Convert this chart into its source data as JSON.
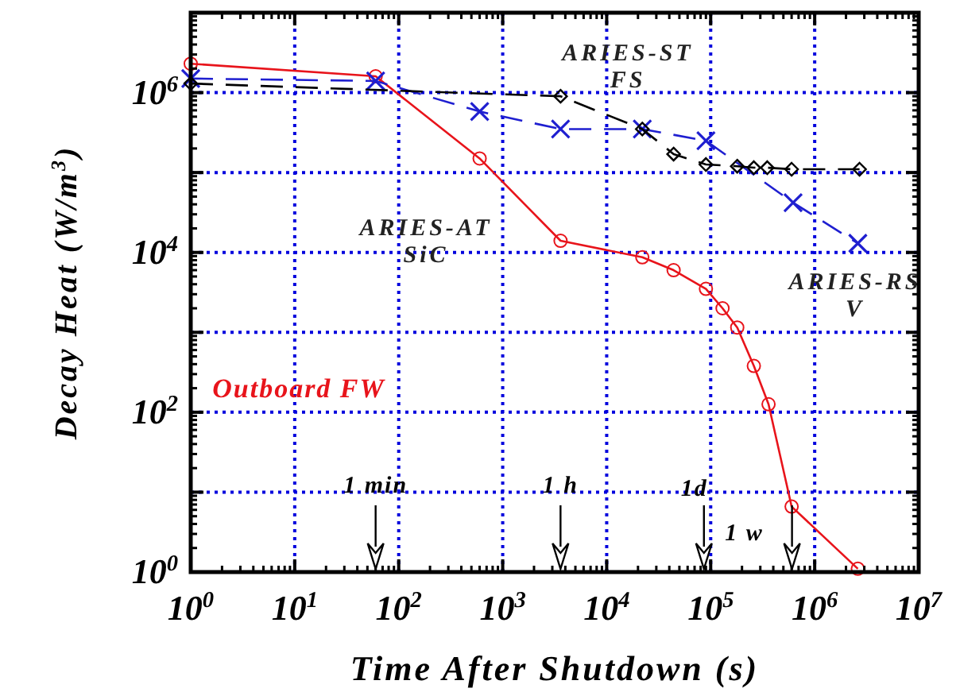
{
  "chart_data": {
    "type": "line",
    "xlabel": "Time After Shutdown (s)",
    "ylabel": "Decay Heat (W/m$^{3}$)",
    "log": "xy",
    "grid": true,
    "xlim": [
      1,
      10000000
    ],
    "ylim": [
      1,
      10000000
    ],
    "xticks": [
      {
        "value": 1,
        "label": "10$^{0}$"
      },
      {
        "value": 10,
        "label": "10$^{1}$"
      },
      {
        "value": 100,
        "label": "10$^{2}$"
      },
      {
        "value": 1000,
        "label": "10$^{3}$"
      },
      {
        "value": 10000,
        "label": "10$^{4}$"
      },
      {
        "value": 100000,
        "label": "10$^{5}$"
      },
      {
        "value": 1000000,
        "label": "10$^{6}$"
      },
      {
        "value": 10000000,
        "label": "10$^{7}$"
      }
    ],
    "yticks": [
      {
        "value": 1,
        "label": "10$^{0}$"
      },
      {
        "value": 10,
        "label": null
      },
      {
        "value": 100,
        "label": "10$^{2}$"
      },
      {
        "value": 1000,
        "label": null
      },
      {
        "value": 10000,
        "label": "10$^{4}$"
      },
      {
        "value": 100000,
        "label": null
      },
      {
        "value": 1000000,
        "label": "10$^{6}$"
      },
      {
        "value": 10000000,
        "label": null
      }
    ],
    "series": [
      {
        "name": "Outboard FW",
        "color": "#e8141b",
        "marker": "circle",
        "line_style": "solid",
        "x": [
          1,
          60,
          600,
          3600,
          22000,
          44000,
          90000,
          130000,
          180000,
          260000,
          360000,
          600000,
          2600000
        ],
        "values": [
          2300000,
          1600000,
          150000,
          14000,
          8700,
          6000,
          3500,
          2000,
          1150,
          380,
          126,
          6.6,
          1.1
        ]
      },
      {
        "color": "#1f1fd0",
        "marker": "cross",
        "line_style": "dashed",
        "x": [
          1,
          60,
          600,
          3600,
          22000,
          90000,
          620000,
          2600000
        ],
        "values": [
          1500000,
          1400000,
          580000,
          350000,
          350000,
          250000,
          42000,
          13000
        ]
      },
      {
        "color": "#000000",
        "marker": "diamond",
        "line_style": "dashed",
        "x": [
          1,
          3600,
          22000,
          44000,
          90000,
          180000,
          260000,
          350000,
          600000,
          2700000
        ],
        "values": [
          1300000,
          900000,
          350000,
          170000,
          126000,
          120000,
          115000,
          115000,
          110000,
          110000
        ]
      }
    ],
    "annotations": [
      "ARIES-ST\nFS",
      "ARIES-AT\nSiC",
      "ARIES-RS\nV",
      "1 min",
      "1 h",
      "1d",
      "1 w"
    ]
  }
}
